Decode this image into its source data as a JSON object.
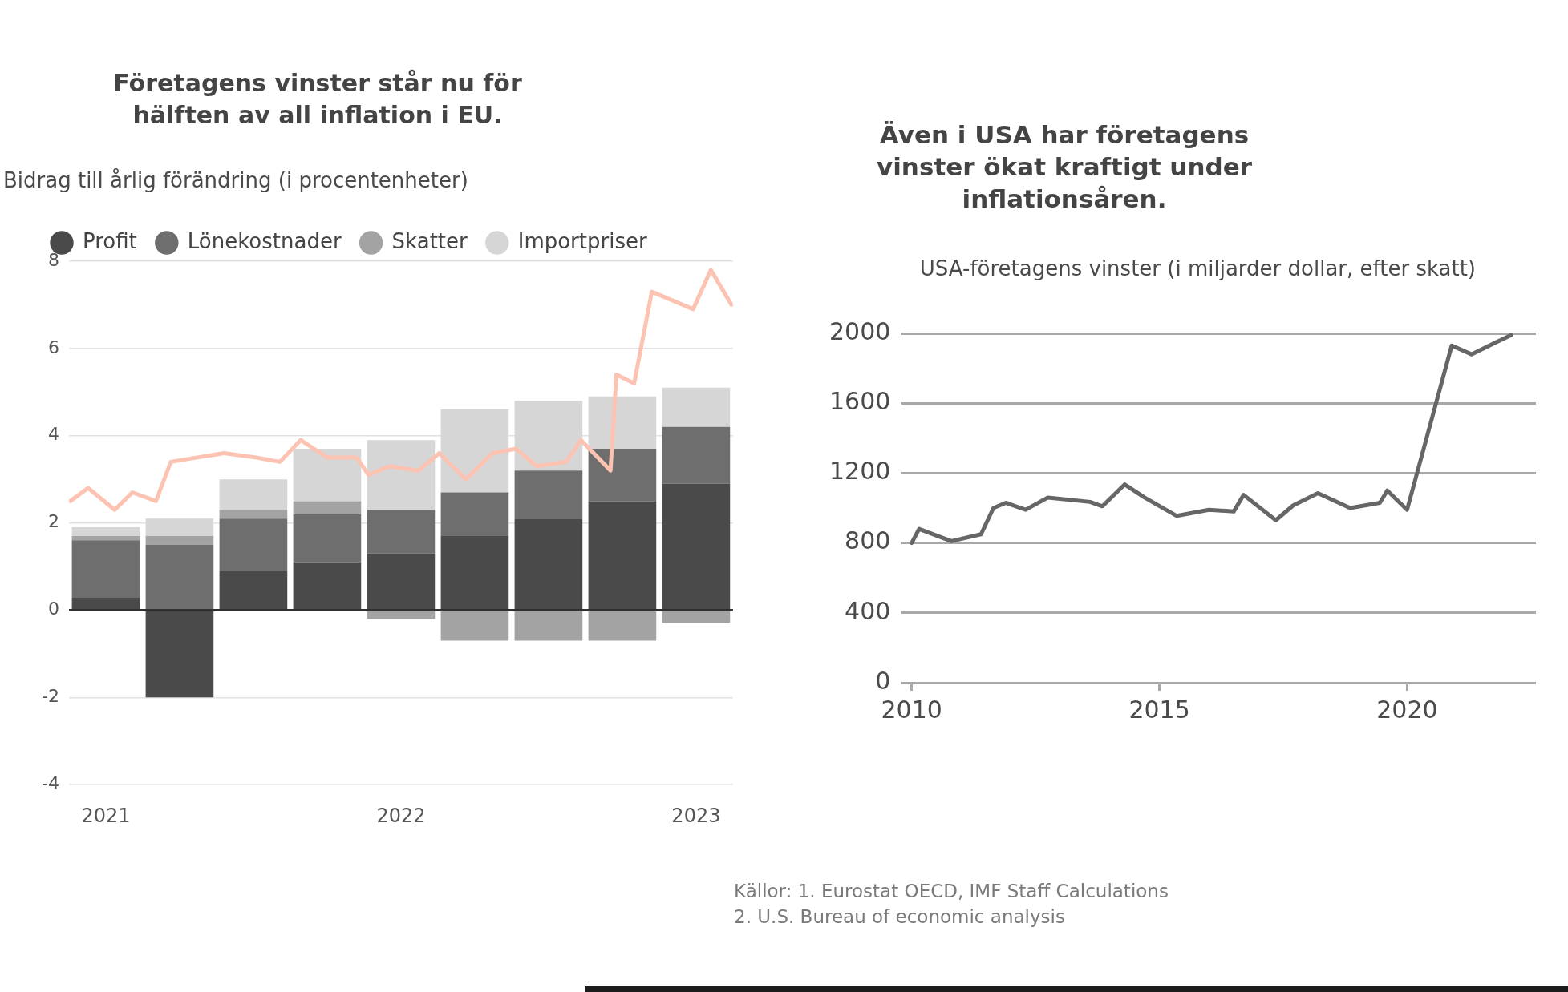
{
  "chart_data": [
    {
      "type": "bar",
      "title": "Företagens vinster står nu för hälften av all inflation i EU.",
      "subtitle": "Bidrag till årlig förändring (i procentenheter)",
      "x": [
        2021,
        2021.25,
        2021.5,
        2021.75,
        2022,
        2022.25,
        2022.5,
        2022.75,
        2023
      ],
      "stacked": true,
      "series": [
        {
          "name": "Profit",
          "color": "#4a4a4a",
          "values": [
            0.3,
            -2.0,
            0.9,
            1.1,
            1.3,
            1.7,
            2.1,
            2.5,
            2.9
          ]
        },
        {
          "name": "Lönekostnader",
          "color": "#6e6e6e",
          "values": [
            1.3,
            1.5,
            1.2,
            1.1,
            1.0,
            1.0,
            1.1,
            1.2,
            1.3
          ]
        },
        {
          "name": "Skatter",
          "color": "#a3a3a3",
          "values": [
            0.1,
            0.2,
            0.2,
            0.3,
            -0.2,
            -0.7,
            -0.7,
            -0.7,
            -0.3
          ]
        },
        {
          "name": "Importpriser",
          "color": "#d6d6d6",
          "values": [
            0.2,
            0.4,
            0.7,
            1.2,
            1.6,
            1.9,
            1.6,
            1.2,
            0.9
          ]
        },
        {
          "type": "line",
          "color": "#fcc3b2",
          "x": [
            2020.88,
            2020.94,
            2021.03,
            2021.09,
            2021.17,
            2021.22,
            2021.4,
            2021.51,
            2021.59,
            2021.66,
            2021.75,
            2021.85,
            2021.89,
            2021.96,
            2022.06,
            2022.13,
            2022.22,
            2022.31,
            2022.39,
            2022.46,
            2022.56,
            2022.61,
            2022.71,
            2022.73,
            2022.79,
            2022.85,
            2022.99,
            2023.05,
            2023.12
          ],
          "values": [
            2.5,
            2.8,
            2.3,
            2.7,
            2.5,
            3.4,
            3.6,
            3.5,
            3.4,
            3.9,
            3.5,
            3.5,
            3.1,
            3.3,
            3.2,
            3.6,
            3.0,
            3.6,
            3.7,
            3.3,
            3.4,
            3.9,
            3.2,
            5.4,
            5.2,
            7.3,
            6.9,
            7.8,
            7.0
          ]
        }
      ],
      "xlim": [
        2020.875,
        2023.125
      ],
      "xticks": [
        2021,
        2022,
        2023
      ],
      "ylim": [
        -4,
        8
      ],
      "yticks": [
        -4,
        -2,
        0,
        2,
        4,
        6,
        8
      ],
      "grid": "y",
      "legend": "top left",
      "annotations": [
        "Källor: 1. Eurostat OECD, IMF Staff Calculations"
      ]
    },
    {
      "type": "line",
      "title": "Även i USA har företagens vinster ökat kraftigt under inflationsåren.",
      "subtitle": "USA-företagens vinster (i miljarder dollar, efter skatt)",
      "x": [
        2010,
        2010.15,
        2010.8,
        2011.4,
        2011.65,
        2011.9,
        2012.3,
        2012.75,
        2013.6,
        2013.85,
        2014.3,
        2014.7,
        2015.35,
        2016,
        2016.5,
        2016.7,
        2017.35,
        2017.7,
        2018.2,
        2018.85,
        2019.45,
        2019.6,
        2020,
        2020.9,
        2021.3,
        2021.8,
        2022.1
      ],
      "values": [
        800,
        880,
        810,
        850,
        1000,
        1030,
        990,
        1060,
        1035,
        1010,
        1135,
        1060,
        955,
        990,
        980,
        1075,
        930,
        1015,
        1085,
        1000,
        1030,
        1100,
        990,
        1930,
        1880,
        1950,
        1990
      ],
      "color": "#666666",
      "xlim": [
        2009.8,
        2022.6
      ],
      "xticks": [
        2010,
        2015,
        2020
      ],
      "ylim": [
        0,
        2000
      ],
      "yticks": [
        0,
        400,
        800,
        1200,
        1600,
        2000
      ],
      "grid": "y",
      "annotations": [
        "2. U.S. Bureau of economic analysis"
      ]
    }
  ]
}
